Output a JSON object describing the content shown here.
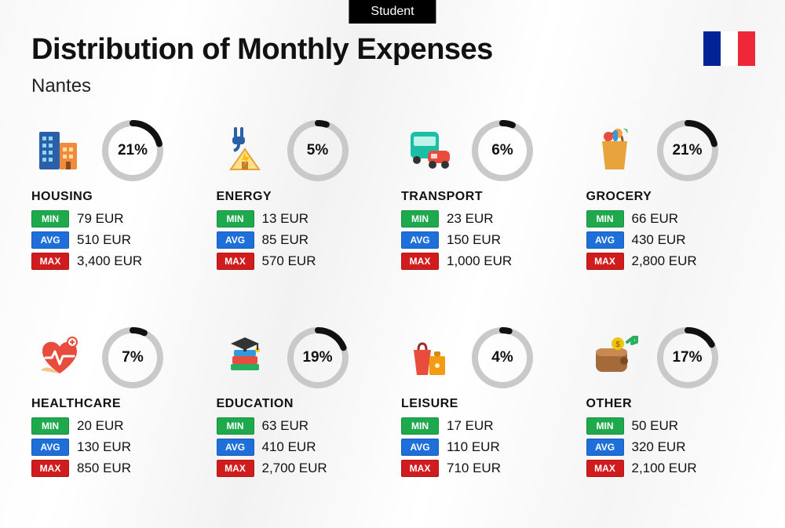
{
  "badge": "Student",
  "title": "Distribution of Monthly Expenses",
  "subtitle": "Nantes",
  "currency": "EUR",
  "flag_colors": [
    "#002395",
    "#ffffff",
    "#ed2939"
  ],
  "ring": {
    "track_color": "#c9c9c9",
    "progress_color": "#111111",
    "stroke_width": 8
  },
  "pill_colors": {
    "min": "#1eaa4c",
    "avg": "#1e6fd9",
    "max": "#d01c1c"
  },
  "pill_labels": {
    "min": "MIN",
    "avg": "AVG",
    "max": "MAX"
  },
  "categories": [
    {
      "name": "HOUSING",
      "icon": "housing-icon",
      "percent": 21,
      "min": "79",
      "avg": "510",
      "max": "3,400"
    },
    {
      "name": "ENERGY",
      "icon": "energy-icon",
      "percent": 5,
      "min": "13",
      "avg": "85",
      "max": "570"
    },
    {
      "name": "TRANSPORT",
      "icon": "transport-icon",
      "percent": 6,
      "min": "23",
      "avg": "150",
      "max": "1,000"
    },
    {
      "name": "GROCERY",
      "icon": "grocery-icon",
      "percent": 21,
      "min": "66",
      "avg": "430",
      "max": "2,800"
    },
    {
      "name": "HEALTHCARE",
      "icon": "healthcare-icon",
      "percent": 7,
      "min": "20",
      "avg": "130",
      "max": "850"
    },
    {
      "name": "EDUCATION",
      "icon": "education-icon",
      "percent": 19,
      "min": "63",
      "avg": "410",
      "max": "2,700"
    },
    {
      "name": "LEISURE",
      "icon": "leisure-icon",
      "percent": 4,
      "min": "17",
      "avg": "110",
      "max": "710"
    },
    {
      "name": "OTHER",
      "icon": "other-icon",
      "percent": 17,
      "min": "50",
      "avg": "320",
      "max": "2,100"
    }
  ]
}
